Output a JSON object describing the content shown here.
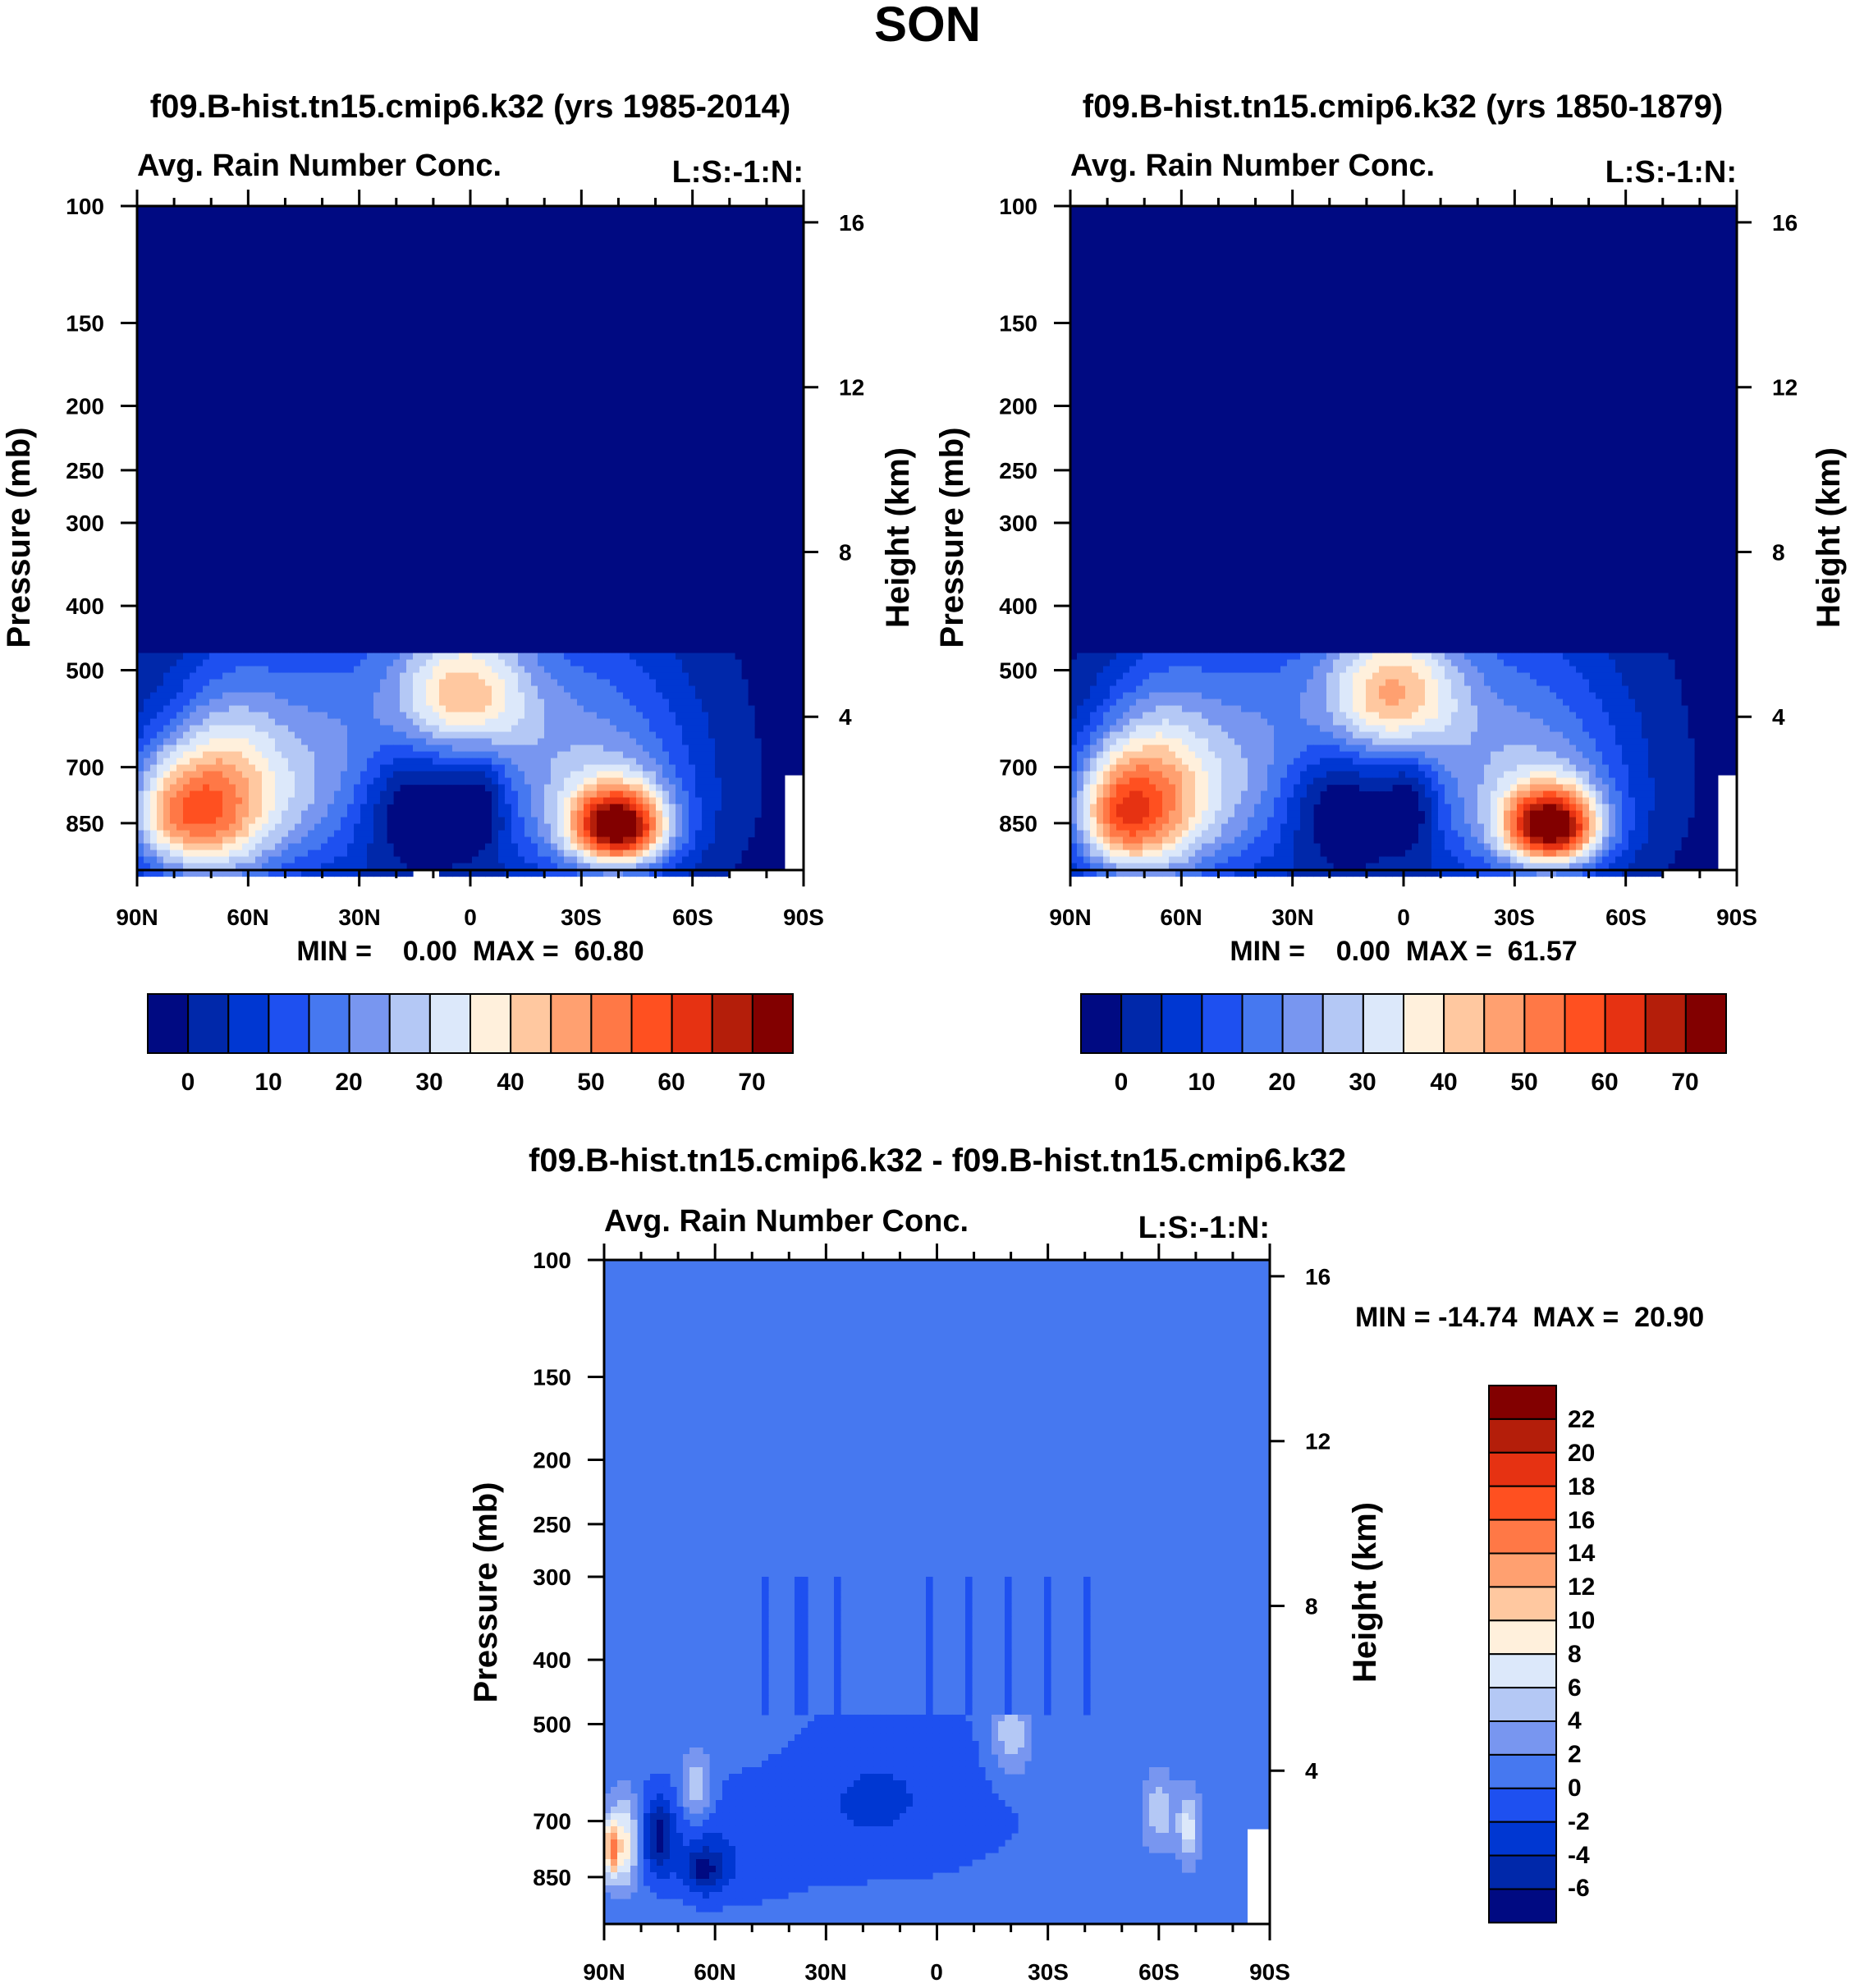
{
  "page": {
    "main_title": "SON"
  },
  "colors": {
    "abs_levels": [
      "#000a82",
      "#0028aa",
      "#0037d2",
      "#1e50f0",
      "#4678f0",
      "#7896f0",
      "#b4c8f5",
      "#dce8fa",
      "#fff0dc",
      "#ffc8a0",
      "#ffa070",
      "#ff7846",
      "#ff5020",
      "#e63212",
      "#b41e0a",
      "#820000"
    ],
    "diff_levels": [
      "#000a82",
      "#0028aa",
      "#0037d2",
      "#1e50f0",
      "#4678f0",
      "#7896f0",
      "#b4c8f5",
      "#dce8fa",
      "#fff0dc",
      "#ffc8a0",
      "#ffa070",
      "#ff7846",
      "#ff5020",
      "#e63212",
      "#b41e0a",
      "#820000"
    ]
  },
  "chart_data": [
    {
      "type": "heatmap",
      "id": "panel-1",
      "title": "f09.B-hist.tn15.cmip6.k32 (yrs 1985-2014)",
      "left_string": "Avg. Rain Number Conc.",
      "right_string": "L:S:-1:N:",
      "stats": "MIN =    0.00  MAX =  60.80",
      "min": 0.0,
      "max": 60.8,
      "xlabel": "",
      "ylabel": "Pressure (mb)",
      "ylabel_right": "Height (km)",
      "x_ticks": [
        "90N",
        "60N",
        "30N",
        "0",
        "30S",
        "60S",
        "90S"
      ],
      "x_range": [
        90,
        -90
      ],
      "y_ticks": [
        100,
        150,
        200,
        250,
        300,
        400,
        500,
        700,
        850
      ],
      "y_range": [
        100,
        1000
      ],
      "height_ticks": [
        16,
        12,
        8,
        4
      ],
      "colorbar_labels": [
        "0",
        "10",
        "20",
        "30",
        "40",
        "50",
        "60",
        "70"
      ],
      "blobs": [
        {
          "lat": 45,
          "plev": 750,
          "value": 20,
          "sx": 20,
          "sp": 200
        },
        {
          "lat": 80,
          "plev": 820,
          "value": 40,
          "sx": 10,
          "sp": 130
        },
        {
          "lat": 65,
          "plev": 790,
          "value": 28,
          "sx": 10,
          "sp": 180
        },
        {
          "lat": 2,
          "plev": 540,
          "value": 34,
          "sx": 13,
          "sp": 90
        },
        {
          "lat": -40,
          "plev": 860,
          "value": 62,
          "sx": 9,
          "sp": 80
        },
        {
          "lat": -35,
          "plev": 760,
          "value": 22,
          "sx": 20,
          "sp": 220
        },
        {
          "lat": 10,
          "plev": 640,
          "value": 12,
          "sx": 40,
          "sp": 250
        },
        {
          "lat": 15,
          "plev": 800,
          "value": -20,
          "sx": 12,
          "sp": 120
        },
        {
          "lat": -3,
          "plev": 790,
          "value": -13,
          "sx": 5,
          "sp": 100
        }
      ],
      "surface_edge_lat": -85
    },
    {
      "type": "heatmap",
      "id": "panel-2",
      "title": "f09.B-hist.tn15.cmip6.k32 (yrs 1850-1879)",
      "left_string": "Avg. Rain Number Conc.",
      "right_string": "L:S:-1:N:",
      "stats": "MIN =    0.00  MAX =  61.57",
      "min": 0.0,
      "max": 61.57,
      "xlabel": "",
      "ylabel": "Pressure (mb)",
      "ylabel_right": "Height (km)",
      "x_ticks": [
        "90N",
        "60N",
        "30N",
        "0",
        "30S",
        "60S",
        "90S"
      ],
      "x_range": [
        90,
        -90
      ],
      "y_ticks": [
        100,
        150,
        200,
        250,
        300,
        400,
        500,
        700,
        850
      ],
      "y_range": [
        100,
        1000
      ],
      "height_ticks": [
        16,
        12,
        8,
        4
      ],
      "colorbar_labels": [
        "0",
        "10",
        "20",
        "30",
        "40",
        "50",
        "60",
        "70"
      ],
      "blobs": [
        {
          "lat": 45,
          "plev": 750,
          "value": 20,
          "sx": 20,
          "sp": 200
        },
        {
          "lat": 78,
          "plev": 820,
          "value": 42,
          "sx": 9,
          "sp": 130
        },
        {
          "lat": 65,
          "plev": 790,
          "value": 28,
          "sx": 10,
          "sp": 180
        },
        {
          "lat": 3,
          "plev": 540,
          "value": 36,
          "sx": 13,
          "sp": 90
        },
        {
          "lat": -40,
          "plev": 860,
          "value": 62,
          "sx": 9,
          "sp": 80
        },
        {
          "lat": -35,
          "plev": 760,
          "value": 22,
          "sx": 20,
          "sp": 220
        },
        {
          "lat": 10,
          "plev": 640,
          "value": 12,
          "sx": 40,
          "sp": 250
        },
        {
          "lat": 18,
          "plev": 800,
          "value": -20,
          "sx": 12,
          "sp": 120
        },
        {
          "lat": -2,
          "plev": 790,
          "value": -13,
          "sx": 5,
          "sp": 100
        }
      ],
      "surface_edge_lat": -85
    },
    {
      "type": "heatmap",
      "id": "panel-diff",
      "title": "f09.B-hist.tn15.cmip6.k32 - f09.B-hist.tn15.cmip6.k32",
      "left_string": "Avg. Rain Number Conc.",
      "right_string": "L:S:-1:N:",
      "stats": "MIN = -14.74  MAX =  20.90",
      "min": -14.74,
      "max": 20.9,
      "xlabel": "",
      "ylabel": "Pressure (mb)",
      "ylabel_right": "Height (km)",
      "x_ticks": [
        "90N",
        "60N",
        "30N",
        "0",
        "30S",
        "60S",
        "90S"
      ],
      "x_range": [
        90,
        -90
      ],
      "y_ticks": [
        100,
        150,
        200,
        250,
        300,
        400,
        500,
        700,
        850
      ],
      "y_range": [
        100,
        1000
      ],
      "height_ticks": [
        16,
        12,
        8,
        4
      ],
      "colorbar_labels": [
        "22",
        "20",
        "18",
        "16",
        "14",
        "12",
        "10",
        "8",
        "6",
        "4",
        "2",
        "0",
        "-2",
        "-4",
        "-6"
      ],
      "blobs": [
        {
          "lat": 20,
          "plev": 650,
          "value": -2.5,
          "sx": 15,
          "sp": 130
        },
        {
          "lat": 55,
          "plev": 770,
          "value": -2.5,
          "sx": 15,
          "sp": 120
        },
        {
          "lat": 88,
          "plev": 770,
          "value": 14,
          "sx": 1.5,
          "sp": 60
        },
        {
          "lat": 84,
          "plev": 760,
          "value": 8,
          "sx": 2,
          "sp": 80
        },
        {
          "lat": 75,
          "plev": 740,
          "value": -7,
          "sx": 3,
          "sp": 70
        },
        {
          "lat": 63,
          "plev": 830,
          "value": -6,
          "sx": 4,
          "sp": 50
        },
        {
          "lat": 65,
          "plev": 620,
          "value": 5,
          "sx": 3,
          "sp": 50
        },
        {
          "lat": -20,
          "plev": 520,
          "value": 5,
          "sx": 4,
          "sp": 60
        },
        {
          "lat": -60,
          "plev": 680,
          "value": 4.5,
          "sx": 3,
          "sp": 60
        },
        {
          "lat": -68,
          "plev": 720,
          "value": 6,
          "sx": 2,
          "sp": 60
        },
        {
          "lat": -5,
          "plev": 650,
          "value": -1.5,
          "sx": 20,
          "sp": 150
        }
      ],
      "surface_edge_lat": -84
    }
  ]
}
